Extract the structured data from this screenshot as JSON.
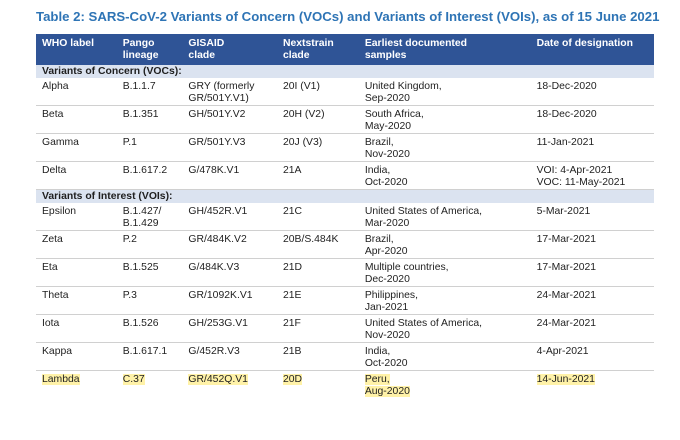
{
  "title": "Table 2: SARS-CoV-2 Variants of Concern (VOCs) and Variants of Interest (VOIs), as of 15 June 2021",
  "headers": {
    "who": "WHO label",
    "pango_1": "Pango",
    "pango_2": "lineage",
    "gisaid_1": "GISAID",
    "gisaid_2": "clade",
    "next_1": "Nextstrain",
    "next_2": "clade",
    "early_1": "Earliest documented",
    "early_2": "samples",
    "date": "Date of designation"
  },
  "sections": {
    "voc": "Variants of Concern (VOCs):",
    "voi": "Variants of Interest (VOIs):"
  },
  "rows": [
    {
      "who": "Alpha",
      "pango_1": "B.1.1.7",
      "pango_2": "",
      "gisaid_1": "GRY (formerly",
      "gisaid_2": "GR/501Y.V1)",
      "next": "20I (V1)",
      "early_1": "United Kingdom,",
      "early_2": "Sep-2020",
      "date_1": "18-Dec-2020",
      "date_2": ""
    },
    {
      "who": "Beta",
      "pango_1": "B.1.351",
      "pango_2": "",
      "gisaid_1": "GH/501Y.V2",
      "gisaid_2": "",
      "next": "20H (V2)",
      "early_1": "South Africa,",
      "early_2": "May-2020",
      "date_1": "18-Dec-2020",
      "date_2": ""
    },
    {
      "who": "Gamma",
      "pango_1": "P.1",
      "pango_2": "",
      "gisaid_1": "GR/501Y.V3",
      "gisaid_2": "",
      "next": "20J (V3)",
      "early_1": "Brazil,",
      "early_2": "Nov-2020",
      "date_1": "11-Jan-2021",
      "date_2": ""
    },
    {
      "who": "Delta",
      "pango_1": "B.1.617.2",
      "pango_2": "",
      "gisaid_1": "G/478K.V1",
      "gisaid_2": "",
      "next": "21A",
      "early_1": "India,",
      "early_2": "Oct-2020",
      "date_1": "VOI: 4-Apr-2021",
      "date_2": "VOC: 11-May-2021"
    },
    {
      "who": "Epsilon",
      "pango_1": "B.1.427/",
      "pango_2": "B.1.429",
      "gisaid_1": "GH/452R.V1",
      "gisaid_2": "",
      "next": "21C",
      "early_1": "United States of America,",
      "early_2": "Mar-2020",
      "date_1": "5-Mar-2021",
      "date_2": ""
    },
    {
      "who": "Zeta",
      "pango_1": "P.2",
      "pango_2": "",
      "gisaid_1": "GR/484K.V2",
      "gisaid_2": "",
      "next": "20B/S.484K",
      "early_1": "Brazil,",
      "early_2": "Apr-2020",
      "date_1": "17-Mar-2021",
      "date_2": ""
    },
    {
      "who": "Eta",
      "pango_1": "B.1.525",
      "pango_2": "",
      "gisaid_1": "G/484K.V3",
      "gisaid_2": "",
      "next": "21D",
      "early_1": "Multiple countries,",
      "early_2": "Dec-2020",
      "date_1": "17-Mar-2021",
      "date_2": ""
    },
    {
      "who": "Theta",
      "pango_1": "P.3",
      "pango_2": "",
      "gisaid_1": "GR/1092K.V1",
      "gisaid_2": "",
      "next": "21E",
      "early_1": "Philippines,",
      "early_2": "Jan-2021",
      "date_1": "24-Mar-2021",
      "date_2": ""
    },
    {
      "who": "Iota",
      "pango_1": "B.1.526",
      "pango_2": "",
      "gisaid_1": "GH/253G.V1",
      "gisaid_2": "",
      "next": "21F",
      "early_1": "United States of America,",
      "early_2": "Nov-2020",
      "date_1": "24-Mar-2021",
      "date_2": ""
    },
    {
      "who": "Kappa",
      "pango_1": "B.1.617.1",
      "pango_2": "",
      "gisaid_1": "G/452R.V3",
      "gisaid_2": "",
      "next": "21B",
      "early_1": "India,",
      "early_2": "Oct-2020",
      "date_1": "4-Apr-2021",
      "date_2": ""
    },
    {
      "who": "Lambda",
      "pango_1": "C.37",
      "pango_2": "",
      "gisaid_1": "GR/452Q.V1",
      "gisaid_2": "",
      "next": "20D",
      "early_1": "Peru,",
      "early_2": "Aug-2020",
      "date_1": "14-Jun-2021",
      "date_2": ""
    }
  ],
  "colors": {
    "title": "#2e74b5",
    "header_bg": "#2f5496",
    "section_bg": "#dbe3f0",
    "highlight": "#fff2a8",
    "rule": "#d0d0d0"
  }
}
